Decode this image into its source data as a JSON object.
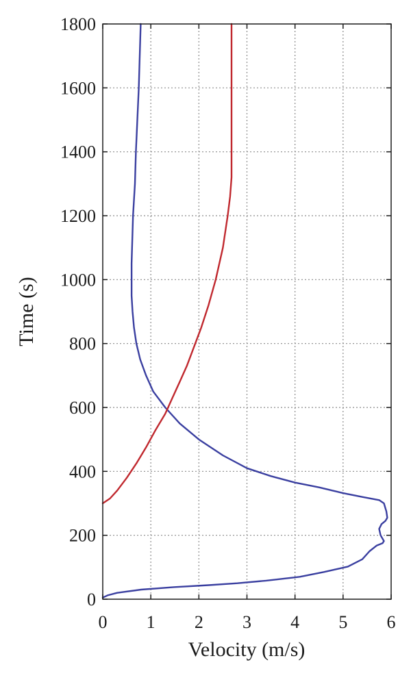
{
  "chart_data": {
    "type": "line",
    "title": "",
    "xlabel": "Velocity (m/s)",
    "ylabel": "Time (s)",
    "xlim": [
      0,
      6
    ],
    "ylim": [
      0,
      1800
    ],
    "xticks": [
      "0",
      "1",
      "2",
      "3",
      "4",
      "5",
      "6"
    ],
    "yticks": [
      "0",
      "200",
      "400",
      "600",
      "800",
      "1000",
      "1200",
      "1400",
      "1600",
      "1800"
    ],
    "grid": true,
    "legend": "none",
    "series": [
      {
        "color": "#3a3fa0",
        "points": [
          [
            0.0,
            5
          ],
          [
            0.1,
            12
          ],
          [
            0.3,
            20
          ],
          [
            0.8,
            30
          ],
          [
            1.5,
            38
          ],
          [
            2.2,
            44
          ],
          [
            2.8,
            50
          ],
          [
            3.4,
            58
          ],
          [
            4.1,
            70
          ],
          [
            4.6,
            85
          ],
          [
            5.1,
            102
          ],
          [
            5.4,
            125
          ],
          [
            5.55,
            150
          ],
          [
            5.7,
            168
          ],
          [
            5.82,
            175
          ],
          [
            5.85,
            182
          ],
          [
            5.78,
            200
          ],
          [
            5.75,
            220
          ],
          [
            5.8,
            235
          ],
          [
            5.88,
            245
          ],
          [
            5.92,
            255
          ],
          [
            5.9,
            275
          ],
          [
            5.85,
            300
          ],
          [
            5.75,
            310
          ],
          [
            5.4,
            320
          ],
          [
            5.0,
            332
          ],
          [
            4.5,
            350
          ],
          [
            4.0,
            365
          ],
          [
            3.5,
            385
          ],
          [
            3.0,
            410
          ],
          [
            2.5,
            450
          ],
          [
            2.0,
            500
          ],
          [
            1.6,
            550
          ],
          [
            1.3,
            600
          ],
          [
            1.05,
            650
          ],
          [
            0.9,
            700
          ],
          [
            0.78,
            750
          ],
          [
            0.7,
            800
          ],
          [
            0.65,
            850
          ],
          [
            0.62,
            900
          ],
          [
            0.6,
            950
          ],
          [
            0.6,
            1000
          ],
          [
            0.6,
            1050
          ],
          [
            0.61,
            1100
          ],
          [
            0.62,
            1150
          ],
          [
            0.63,
            1200
          ],
          [
            0.65,
            1250
          ],
          [
            0.67,
            1300
          ],
          [
            0.69,
            1400
          ],
          [
            0.72,
            1500
          ],
          [
            0.75,
            1600
          ],
          [
            0.77,
            1700
          ],
          [
            0.79,
            1800
          ]
        ]
      },
      {
        "color": "#c0282e",
        "points": [
          [
            0.0,
            300
          ],
          [
            0.15,
            315
          ],
          [
            0.3,
            340
          ],
          [
            0.5,
            380
          ],
          [
            0.7,
            425
          ],
          [
            0.9,
            475
          ],
          [
            1.1,
            530
          ],
          [
            1.3,
            580
          ],
          [
            1.45,
            630
          ],
          [
            1.6,
            680
          ],
          [
            1.75,
            730
          ],
          [
            1.9,
            790
          ],
          [
            2.05,
            850
          ],
          [
            2.2,
            920
          ],
          [
            2.35,
            1000
          ],
          [
            2.5,
            1100
          ],
          [
            2.6,
            1200
          ],
          [
            2.65,
            1260
          ],
          [
            2.68,
            1320
          ],
          [
            2.68,
            1500
          ],
          [
            2.68,
            1650
          ],
          [
            2.68,
            1800
          ]
        ]
      }
    ]
  }
}
